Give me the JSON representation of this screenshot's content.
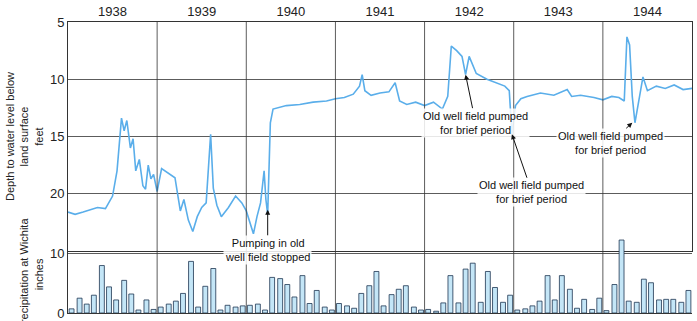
{
  "chart_data": [
    {
      "type": "line",
      "ylabel": [
        "Depth to water level below",
        "land surface",
        "feet"
      ],
      "xlim": [
        1938,
        1945
      ],
      "xticks": [
        {
          "value": 1938.5,
          "label": "1938"
        },
        {
          "value": 1939.5,
          "label": "1939"
        },
        {
          "value": 1940.5,
          "label": "1940"
        },
        {
          "value": 1941.5,
          "label": "1941"
        },
        {
          "value": 1942.5,
          "label": "1942"
        },
        {
          "value": 1943.5,
          "label": "1943"
        },
        {
          "value": 1944.5,
          "label": "1944"
        }
      ],
      "ylim": [
        25,
        5
      ],
      "yticks": [
        5,
        10,
        15,
        20
      ],
      "grid": true,
      "color": "#5aaeea",
      "x": [
        1938.0,
        1938.08,
        1938.17,
        1938.25,
        1938.33,
        1938.42,
        1938.5,
        1938.55,
        1938.6,
        1938.63,
        1938.66,
        1938.7,
        1938.73,
        1938.76,
        1938.8,
        1938.84,
        1938.87,
        1938.9,
        1938.93,
        1938.96,
        1939.0,
        1939.05,
        1939.12,
        1939.2,
        1939.26,
        1939.3,
        1939.35,
        1939.4,
        1939.45,
        1939.5,
        1939.55,
        1939.6,
        1939.63,
        1939.67,
        1939.72,
        1939.8,
        1939.88,
        1939.95,
        1940.0,
        1940.05,
        1940.08,
        1940.12,
        1940.16,
        1940.2,
        1940.22,
        1940.24,
        1940.27,
        1940.3,
        1940.35,
        1940.45,
        1940.6,
        1940.75,
        1940.9,
        1941.0,
        1941.1,
        1941.2,
        1941.27,
        1941.3,
        1941.33,
        1941.4,
        1941.5,
        1941.6,
        1941.67,
        1941.72,
        1941.8,
        1941.9,
        1942.0,
        1942.1,
        1942.2,
        1942.26,
        1942.3,
        1942.36,
        1942.42,
        1942.46,
        1942.5,
        1942.58,
        1942.7,
        1942.8,
        1942.9,
        1942.95,
        1942.98,
        1943.02,
        1943.08,
        1943.15,
        1943.3,
        1943.45,
        1943.6,
        1943.65,
        1943.75,
        1943.9,
        1944.0,
        1944.1,
        1944.18,
        1944.24,
        1944.27,
        1944.3,
        1944.33,
        1944.36,
        1944.4,
        1944.45,
        1944.5,
        1944.6,
        1944.7,
        1944.8,
        1944.9,
        1945.0
      ],
      "values": [
        21.6,
        21.8,
        21.6,
        21.4,
        21.2,
        21.3,
        20.2,
        18.0,
        13.4,
        14.5,
        13.6,
        16.0,
        15.2,
        18.0,
        17.0,
        19.3,
        19.6,
        17.5,
        18.7,
        18.3,
        19.8,
        17.8,
        18.2,
        18.6,
        21.5,
        20.5,
        22.3,
        23.3,
        22.0,
        21.2,
        20.8,
        14.8,
        19.5,
        21.0,
        22.0,
        21.2,
        20.2,
        20.8,
        21.5,
        22.8,
        23.5,
        22.0,
        20.8,
        18.0,
        20.5,
        21.8,
        13.8,
        12.6,
        12.5,
        12.3,
        12.2,
        12.0,
        11.9,
        11.7,
        11.6,
        11.3,
        10.6,
        9.6,
        11.0,
        11.4,
        11.2,
        11.1,
        10.3,
        11.9,
        12.2,
        12.0,
        12.3,
        12.0,
        12.6,
        11.5,
        7.1,
        7.5,
        8.0,
        9.6,
        8.0,
        9.5,
        10.0,
        10.3,
        10.6,
        11.0,
        14.8,
        12.3,
        11.7,
        11.5,
        11.2,
        11.4,
        10.9,
        11.5,
        11.4,
        11.6,
        11.8,
        11.5,
        11.6,
        11.9,
        6.3,
        7.0,
        11.5,
        13.8,
        12.0,
        9.8,
        11.0,
        10.6,
        10.8,
        10.5,
        10.9,
        10.8
      ],
      "annotations": [
        {
          "x": 1940.24,
          "y": 21.4,
          "text": [
            "Pumping in old",
            "well field stopped"
          ]
        },
        {
          "x": 1942.46,
          "y": 9.6,
          "text": [
            "Old well field pumped",
            "for brief period"
          ]
        },
        {
          "x": 1942.98,
          "y": 14.8,
          "text": [
            "Old well field pumped",
            "for brief period"
          ]
        },
        {
          "x": 1944.33,
          "y": 13.8,
          "text": [
            "Old well field pumped",
            "for brief period"
          ]
        }
      ]
    },
    {
      "type": "bar",
      "ylabel": [
        "Precipitation at Wichita",
        "inches"
      ],
      "xlim": [
        1938,
        1945
      ],
      "xticks": [
        1938.5,
        1939.5,
        1940.5,
        1941.5,
        1942.5,
        1943.5,
        1944.5
      ],
      "tick_labels": "y",
      "ylim": [
        0,
        13
      ],
      "yticks": [
        0,
        10
      ],
      "grid": true,
      "color": "#c4e6f7",
      "x": [
        1938.04,
        1938.13,
        1938.21,
        1938.29,
        1938.38,
        1938.46,
        1938.54,
        1938.63,
        1938.71,
        1938.79,
        1938.88,
        1938.96,
        1939.04,
        1939.13,
        1939.21,
        1939.29,
        1939.38,
        1939.46,
        1939.54,
        1939.63,
        1939.71,
        1939.79,
        1939.88,
        1939.96,
        1940.04,
        1940.13,
        1940.21,
        1940.29,
        1940.38,
        1940.46,
        1940.54,
        1940.63,
        1940.71,
        1940.79,
        1940.88,
        1940.96,
        1941.04,
        1941.13,
        1941.21,
        1941.29,
        1941.38,
        1941.46,
        1941.54,
        1941.63,
        1941.71,
        1941.79,
        1941.88,
        1941.96,
        1942.04,
        1942.13,
        1942.21,
        1942.29,
        1942.38,
        1942.46,
        1942.54,
        1942.63,
        1942.71,
        1942.79,
        1942.88,
        1942.96,
        1943.04,
        1943.13,
        1943.21,
        1943.29,
        1943.38,
        1943.46,
        1943.54,
        1943.63,
        1943.71,
        1943.79,
        1943.88,
        1943.96,
        1944.04,
        1944.13,
        1944.21,
        1944.29,
        1944.38,
        1944.46,
        1944.54,
        1944.63,
        1944.71,
        1944.79,
        1944.88,
        1944.96
      ],
      "values": [
        0.7,
        2.5,
        1.5,
        3.0,
        8.0,
        4.4,
        2.2,
        5.5,
        3.2,
        0.5,
        2.2,
        0.6,
        1.0,
        1.5,
        2.0,
        3.3,
        8.7,
        1.0,
        4.5,
        7.5,
        0.5,
        1.3,
        1.0,
        1.2,
        1.3,
        1.5,
        0.5,
        6.0,
        5.8,
        4.8,
        2.7,
        6.3,
        1.6,
        3.8,
        1.0,
        0.5,
        1.6,
        1.2,
        0.8,
        3.3,
        4.6,
        7.0,
        1.2,
        3.1,
        4.0,
        4.6,
        1.0,
        0.5,
        0.6,
        0.3,
        1.7,
        6.3,
        1.7,
        7.4,
        8.4,
        1.8,
        7.0,
        4.3,
        1.8,
        3.0,
        0.5,
        0.7,
        1.2,
        2.0,
        6.3,
        2.2,
        6.3,
        4.0,
        0.8,
        2.3,
        0.6,
        2.5,
        0.4,
        4.8,
        12.3,
        2.0,
        1.8,
        5.7,
        5.1,
        2.2,
        2.3,
        2.3,
        1.8,
        3.8
      ]
    }
  ]
}
